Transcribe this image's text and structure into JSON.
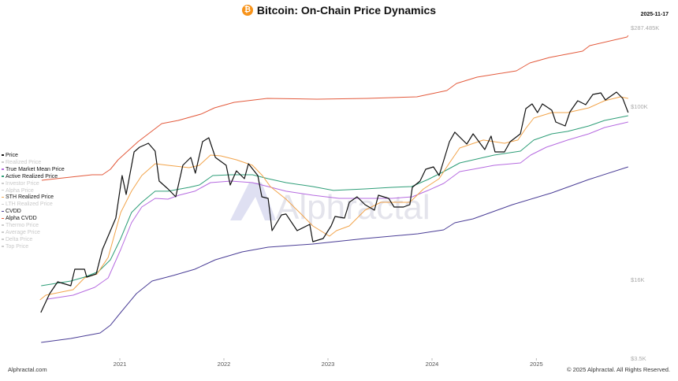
{
  "header": {
    "title": "Bitcoin: On-Chain Price Dynamics",
    "icon": "bitcoin-icon",
    "date": "2025-11-17"
  },
  "footer": {
    "left": "Alphractal.com",
    "right": "© 2025 Alphractal. All Rights Reserved."
  },
  "watermark": "Alphractal",
  "legend": [
    {
      "label": "Price",
      "active": true,
      "color": "#111111"
    },
    {
      "label": "Realized Price",
      "active": false,
      "color": "#cccccc"
    },
    {
      "label": "True Market Mean Price",
      "active": true,
      "color": "#b66be0"
    },
    {
      "label": "Active Realized Price",
      "active": true,
      "color": "#2e9e78"
    },
    {
      "label": "Investor Price",
      "active": false,
      "color": "#cccccc"
    },
    {
      "label": "Alpha Price",
      "active": false,
      "color": "#cccccc"
    },
    {
      "label": "STH Realized Price",
      "active": true,
      "color": "#f2a44b"
    },
    {
      "label": "LTH Realized Price",
      "active": false,
      "color": "#cccccc"
    },
    {
      "label": "CVDD",
      "active": true,
      "color": "#4a3d96"
    },
    {
      "label": "Alpha CVDD",
      "active": true,
      "color": "#e35a3c"
    },
    {
      "label": "Thermo Price",
      "active": false,
      "color": "#cccccc"
    },
    {
      "label": "Average Price",
      "active": false,
      "color": "#cccccc"
    },
    {
      "label": "Delta Price",
      "active": false,
      "color": "#cccccc"
    },
    {
      "label": "Top Price",
      "active": false,
      "color": "#cccccc"
    }
  ],
  "chart_data": {
    "type": "line",
    "title": "Bitcoin: On-Chain Price Dynamics",
    "y_scale": "log",
    "y_ticks": [
      3500,
      16000,
      100000,
      287485
    ],
    "y_tick_labels": [
      "$3.5K",
      "$16K",
      "$100K",
      "$287.485K"
    ],
    "x_ticks": [
      "2021-01-01",
      "2022-01-01",
      "2023-01-01",
      "2024-01-01",
      "2025-01-01"
    ],
    "x_tick_labels": [
      "2021",
      "2022",
      "2023",
      "2024",
      "2025"
    ],
    "xlim": [
      "2020-03-25",
      "2025-11-19"
    ],
    "grid": false,
    "legend_placement": "left",
    "series": [
      {
        "name": "Alpha CVDD",
        "color": "#e35a3c",
        "points": [
          [
            "2020-04-02",
            45700
          ],
          [
            "2020-09-26",
            48450
          ],
          [
            "2020-11-01",
            48450
          ],
          [
            "2020-11-29",
            51360
          ],
          [
            "2020-12-26",
            56760
          ],
          [
            "2021-03-06",
            68750
          ],
          [
            "2021-05-28",
            83260
          ],
          [
            "2021-07-25",
            86100
          ],
          [
            "2021-10-13",
            92050
          ],
          [
            "2021-11-29",
            98370
          ],
          [
            "2022-02-06",
            105400
          ],
          [
            "2022-06-02",
            111100
          ],
          [
            "2022-11-23",
            110000
          ],
          [
            "2023-05-19",
            111100
          ],
          [
            "2023-11-09",
            113500
          ],
          [
            "2024-02-22",
            123500
          ],
          [
            "2024-03-27",
            135800
          ],
          [
            "2024-06-07",
            147800
          ],
          [
            "2024-10-23",
            160800
          ],
          [
            "2024-12-09",
            178800
          ],
          [
            "2025-02-16",
            192500
          ],
          [
            "2025-06-12",
            209400
          ],
          [
            "2025-07-07",
            225500
          ],
          [
            "2025-11-15",
            253200
          ],
          [
            "2025-11-19",
            258700
          ]
        ]
      },
      {
        "name": "CVDD",
        "color": "#4a3d96",
        "points": [
          [
            "2020-03-31",
            4740
          ],
          [
            "2020-07-13",
            5120
          ],
          [
            "2020-10-24",
            5690
          ],
          [
            "2020-11-29",
            6620
          ],
          [
            "2021-01-04",
            8450
          ],
          [
            "2021-02-28",
            12170
          ],
          [
            "2021-04-24",
            15530
          ],
          [
            "2021-07-08",
            16690
          ],
          [
            "2021-09-21",
            17830
          ],
          [
            "2021-12-02",
            19700
          ],
          [
            "2022-03-06",
            21420
          ],
          [
            "2022-06-05",
            22520
          ],
          [
            "2022-11-09",
            23280
          ],
          [
            "2023-05-11",
            24680
          ],
          [
            "2023-11-12",
            25940
          ],
          [
            "2024-02-11",
            27040
          ],
          [
            "2024-03-21",
            29150
          ],
          [
            "2024-05-24",
            30380
          ],
          [
            "2024-10-09",
            35310
          ],
          [
            "2025-02-24",
            40000
          ],
          [
            "2025-07-04",
            46100
          ],
          [
            "2025-11-19",
            52660
          ]
        ]
      },
      {
        "name": "True Market Mean Price",
        "color": "#b66be0",
        "points": [
          [
            "2020-04-22",
            10940
          ],
          [
            "2020-07-21",
            11800
          ],
          [
            "2020-10-05",
            13740
          ],
          [
            "2020-11-21",
            16270
          ],
          [
            "2021-01-04",
            21950
          ],
          [
            "2021-02-11",
            29150
          ],
          [
            "2021-03-19",
            34440
          ],
          [
            "2021-05-05",
            37740
          ],
          [
            "2021-06-19",
            37430
          ],
          [
            "2021-07-27",
            39020
          ],
          [
            "2021-09-21",
            40690
          ],
          [
            "2021-11-15",
            44580
          ],
          [
            "2022-01-26",
            45340
          ],
          [
            "2022-04-11",
            44580
          ],
          [
            "2022-06-05",
            42770
          ],
          [
            "2022-08-07",
            40690
          ],
          [
            "2022-11-09",
            39020
          ],
          [
            "2023-02-09",
            37740
          ],
          [
            "2023-05-11",
            37740
          ],
          [
            "2023-08-13",
            37740
          ],
          [
            "2023-10-24",
            38380
          ],
          [
            "2023-12-18",
            41030
          ],
          [
            "2024-02-11",
            44210
          ],
          [
            "2024-04-07",
            50100
          ],
          [
            "2024-05-24",
            51360
          ],
          [
            "2024-08-06",
            53540
          ],
          [
            "2024-11-06",
            54900
          ],
          [
            "2024-12-12",
            59660
          ],
          [
            "2025-02-05",
            64850
          ],
          [
            "2025-04-21",
            69930
          ],
          [
            "2025-07-04",
            74740
          ],
          [
            "2025-08-28",
            79870
          ],
          [
            "2025-11-19",
            84670
          ]
        ]
      },
      {
        "name": "Active Realized Price",
        "color": "#2e9e78",
        "points": [
          [
            "2020-03-31",
            14170
          ],
          [
            "2020-07-13",
            15530
          ],
          [
            "2020-08-30",
            16400
          ],
          [
            "2020-10-18",
            17390
          ],
          [
            "2020-11-29",
            19700
          ],
          [
            "2021-01-04",
            24680
          ],
          [
            "2021-02-11",
            32470
          ],
          [
            "2021-03-19",
            36210
          ],
          [
            "2021-05-05",
            40690
          ],
          [
            "2021-06-19",
            40690
          ],
          [
            "2021-09-01",
            42400
          ],
          [
            "2021-10-07",
            43490
          ],
          [
            "2021-11-23",
            48060
          ],
          [
            "2022-01-26",
            48450
          ],
          [
            "2022-04-11",
            48450
          ],
          [
            "2022-06-05",
            46470
          ],
          [
            "2022-08-07",
            44580
          ],
          [
            "2022-11-09",
            42770
          ],
          [
            "2023-01-20",
            41030
          ],
          [
            "2023-05-11",
            41710
          ],
          [
            "2023-08-13",
            42400
          ],
          [
            "2023-10-21",
            42770
          ],
          [
            "2023-12-18",
            46100
          ],
          [
            "2024-02-11",
            50100
          ],
          [
            "2024-04-07",
            54900
          ],
          [
            "2024-08-06",
            59660
          ],
          [
            "2024-11-06",
            62210
          ],
          [
            "2024-12-23",
            69930
          ],
          [
            "2025-02-24",
            74740
          ],
          [
            "2025-04-21",
            76640
          ],
          [
            "2025-07-04",
            81220
          ],
          [
            "2025-08-28",
            86100
          ],
          [
            "2025-11-19",
            90500
          ]
        ]
      },
      {
        "name": "STH Realized Price",
        "color": "#f2a44b",
        "points": [
          [
            "2020-03-27",
            10780
          ],
          [
            "2020-04-16",
            11800
          ],
          [
            "2020-07-21",
            13130
          ],
          [
            "2020-08-30",
            16270
          ],
          [
            "2020-10-13",
            16960
          ],
          [
            "2020-11-21",
            20210
          ],
          [
            "2021-01-04",
            32470
          ],
          [
            "2021-02-11",
            40690
          ],
          [
            "2021-03-19",
            48060
          ],
          [
            "2021-05-05",
            54430
          ],
          [
            "2021-06-19",
            53540
          ],
          [
            "2021-09-01",
            52230
          ],
          [
            "2021-10-07",
            53540
          ],
          [
            "2021-11-15",
            59660
          ],
          [
            "2021-12-21",
            59170
          ],
          [
            "2022-02-14",
            56760
          ],
          [
            "2022-04-11",
            53540
          ],
          [
            "2022-05-16",
            48060
          ],
          [
            "2022-06-13",
            42770
          ],
          [
            "2022-08-07",
            37430
          ],
          [
            "2022-10-02",
            31680
          ],
          [
            "2022-11-09",
            28190
          ],
          [
            "2023-01-06",
            25300
          ],
          [
            "2023-01-31",
            26820
          ],
          [
            "2023-03-17",
            28190
          ],
          [
            "2023-05-11",
            33310
          ],
          [
            "2023-07-05",
            36210
          ],
          [
            "2023-08-30",
            36210
          ],
          [
            "2023-10-15",
            36210
          ],
          [
            "2023-12-02",
            41710
          ],
          [
            "2024-01-26",
            46470
          ],
          [
            "2024-03-02",
            54900
          ],
          [
            "2024-04-07",
            64330
          ],
          [
            "2024-06-29",
            69930
          ],
          [
            "2024-09-11",
            67620
          ],
          [
            "2024-10-28",
            69930
          ],
          [
            "2024-11-25",
            79220
          ],
          [
            "2024-12-23",
            88260
          ],
          [
            "2025-02-24",
            93570
          ],
          [
            "2025-04-21",
            93570
          ],
          [
            "2025-07-04",
            98370
          ],
          [
            "2025-08-28",
            107700
          ],
          [
            "2025-10-23",
            113500
          ],
          [
            "2025-11-19",
            111100
          ]
        ]
      },
      {
        "name": "Price",
        "color": "#111111",
        "points": [
          [
            "2020-03-30",
            8450
          ],
          [
            "2020-04-30",
            12170
          ],
          [
            "2020-05-28",
            15280
          ],
          [
            "2020-07-13",
            14170
          ],
          [
            "2020-07-27",
            17830
          ],
          [
            "2020-08-30",
            17830
          ],
          [
            "2020-09-07",
            16400
          ],
          [
            "2020-10-10",
            16960
          ],
          [
            "2020-11-01",
            21950
          ],
          [
            "2020-11-29",
            26820
          ],
          [
            "2020-12-18",
            30640
          ],
          [
            "2021-01-09",
            48060
          ],
          [
            "2021-01-23",
            39340
          ],
          [
            "2021-02-20",
            61700
          ],
          [
            "2021-03-11",
            64850
          ],
          [
            "2021-04-11",
            67620
          ],
          [
            "2021-05-05",
            62210
          ],
          [
            "2021-05-19",
            45340
          ],
          [
            "2021-06-19",
            41710
          ],
          [
            "2021-07-16",
            38380
          ],
          [
            "2021-08-10",
            53540
          ],
          [
            "2021-09-07",
            58190
          ],
          [
            "2021-09-23",
            49270
          ],
          [
            "2021-10-18",
            68750
          ],
          [
            "2021-11-09",
            71680
          ],
          [
            "2021-12-02",
            58190
          ],
          [
            "2022-01-09",
            53540
          ],
          [
            "2022-01-23",
            43490
          ],
          [
            "2022-02-14",
            50510
          ],
          [
            "2022-03-14",
            46470
          ],
          [
            "2022-03-28",
            54430
          ],
          [
            "2022-04-30",
            48060
          ],
          [
            "2022-05-14",
            38380
          ],
          [
            "2022-06-05",
            37740
          ],
          [
            "2022-06-19",
            26820
          ],
          [
            "2022-07-22",
            31680
          ],
          [
            "2022-08-07",
            31960
          ],
          [
            "2022-09-15",
            26820
          ],
          [
            "2022-10-29",
            28670
          ],
          [
            "2022-11-09",
            23870
          ],
          [
            "2022-12-15",
            24680
          ],
          [
            "2023-01-12",
            28190
          ],
          [
            "2023-01-26",
            31150
          ],
          [
            "2023-02-28",
            30640
          ],
          [
            "2023-03-17",
            36210
          ],
          [
            "2023-04-13",
            38380
          ],
          [
            "2023-05-11",
            35310
          ],
          [
            "2023-06-13",
            33310
          ],
          [
            "2023-06-27",
            39020
          ],
          [
            "2023-08-02",
            37740
          ],
          [
            "2023-08-21",
            34440
          ],
          [
            "2023-09-23",
            34440
          ],
          [
            "2023-10-15",
            35310
          ],
          [
            "2023-10-24",
            42400
          ],
          [
            "2023-11-20",
            45340
          ],
          [
            "2023-12-10",
            51360
          ],
          [
            "2024-01-06",
            52660
          ],
          [
            "2024-01-26",
            48060
          ],
          [
            "2024-03-02",
            68750
          ],
          [
            "2024-03-21",
            76020
          ],
          [
            "2024-05-02",
            67060
          ],
          [
            "2024-05-24",
            74740
          ],
          [
            "2024-07-04",
            63270
          ],
          [
            "2024-07-26",
            72900
          ],
          [
            "2024-08-09",
            61700
          ],
          [
            "2024-09-11",
            61700
          ],
          [
            "2024-10-01",
            68750
          ],
          [
            "2024-11-06",
            74740
          ],
          [
            "2024-11-25",
            97570
          ],
          [
            "2024-12-17",
            103200
          ],
          [
            "2025-01-05",
            93570
          ],
          [
            "2025-01-22",
            103200
          ],
          [
            "2025-02-24",
            95950
          ],
          [
            "2025-03-10",
            84670
          ],
          [
            "2025-04-12",
            81220
          ],
          [
            "2025-04-29",
            94350
          ],
          [
            "2025-05-26",
            107700
          ],
          [
            "2025-06-23",
            102100
          ],
          [
            "2025-07-18",
            117200
          ],
          [
            "2025-08-15",
            119700
          ],
          [
            "2025-08-31",
            108800
          ],
          [
            "2025-10-09",
            120900
          ],
          [
            "2025-10-31",
            111100
          ],
          [
            "2025-11-19",
            93570
          ]
        ]
      }
    ]
  }
}
